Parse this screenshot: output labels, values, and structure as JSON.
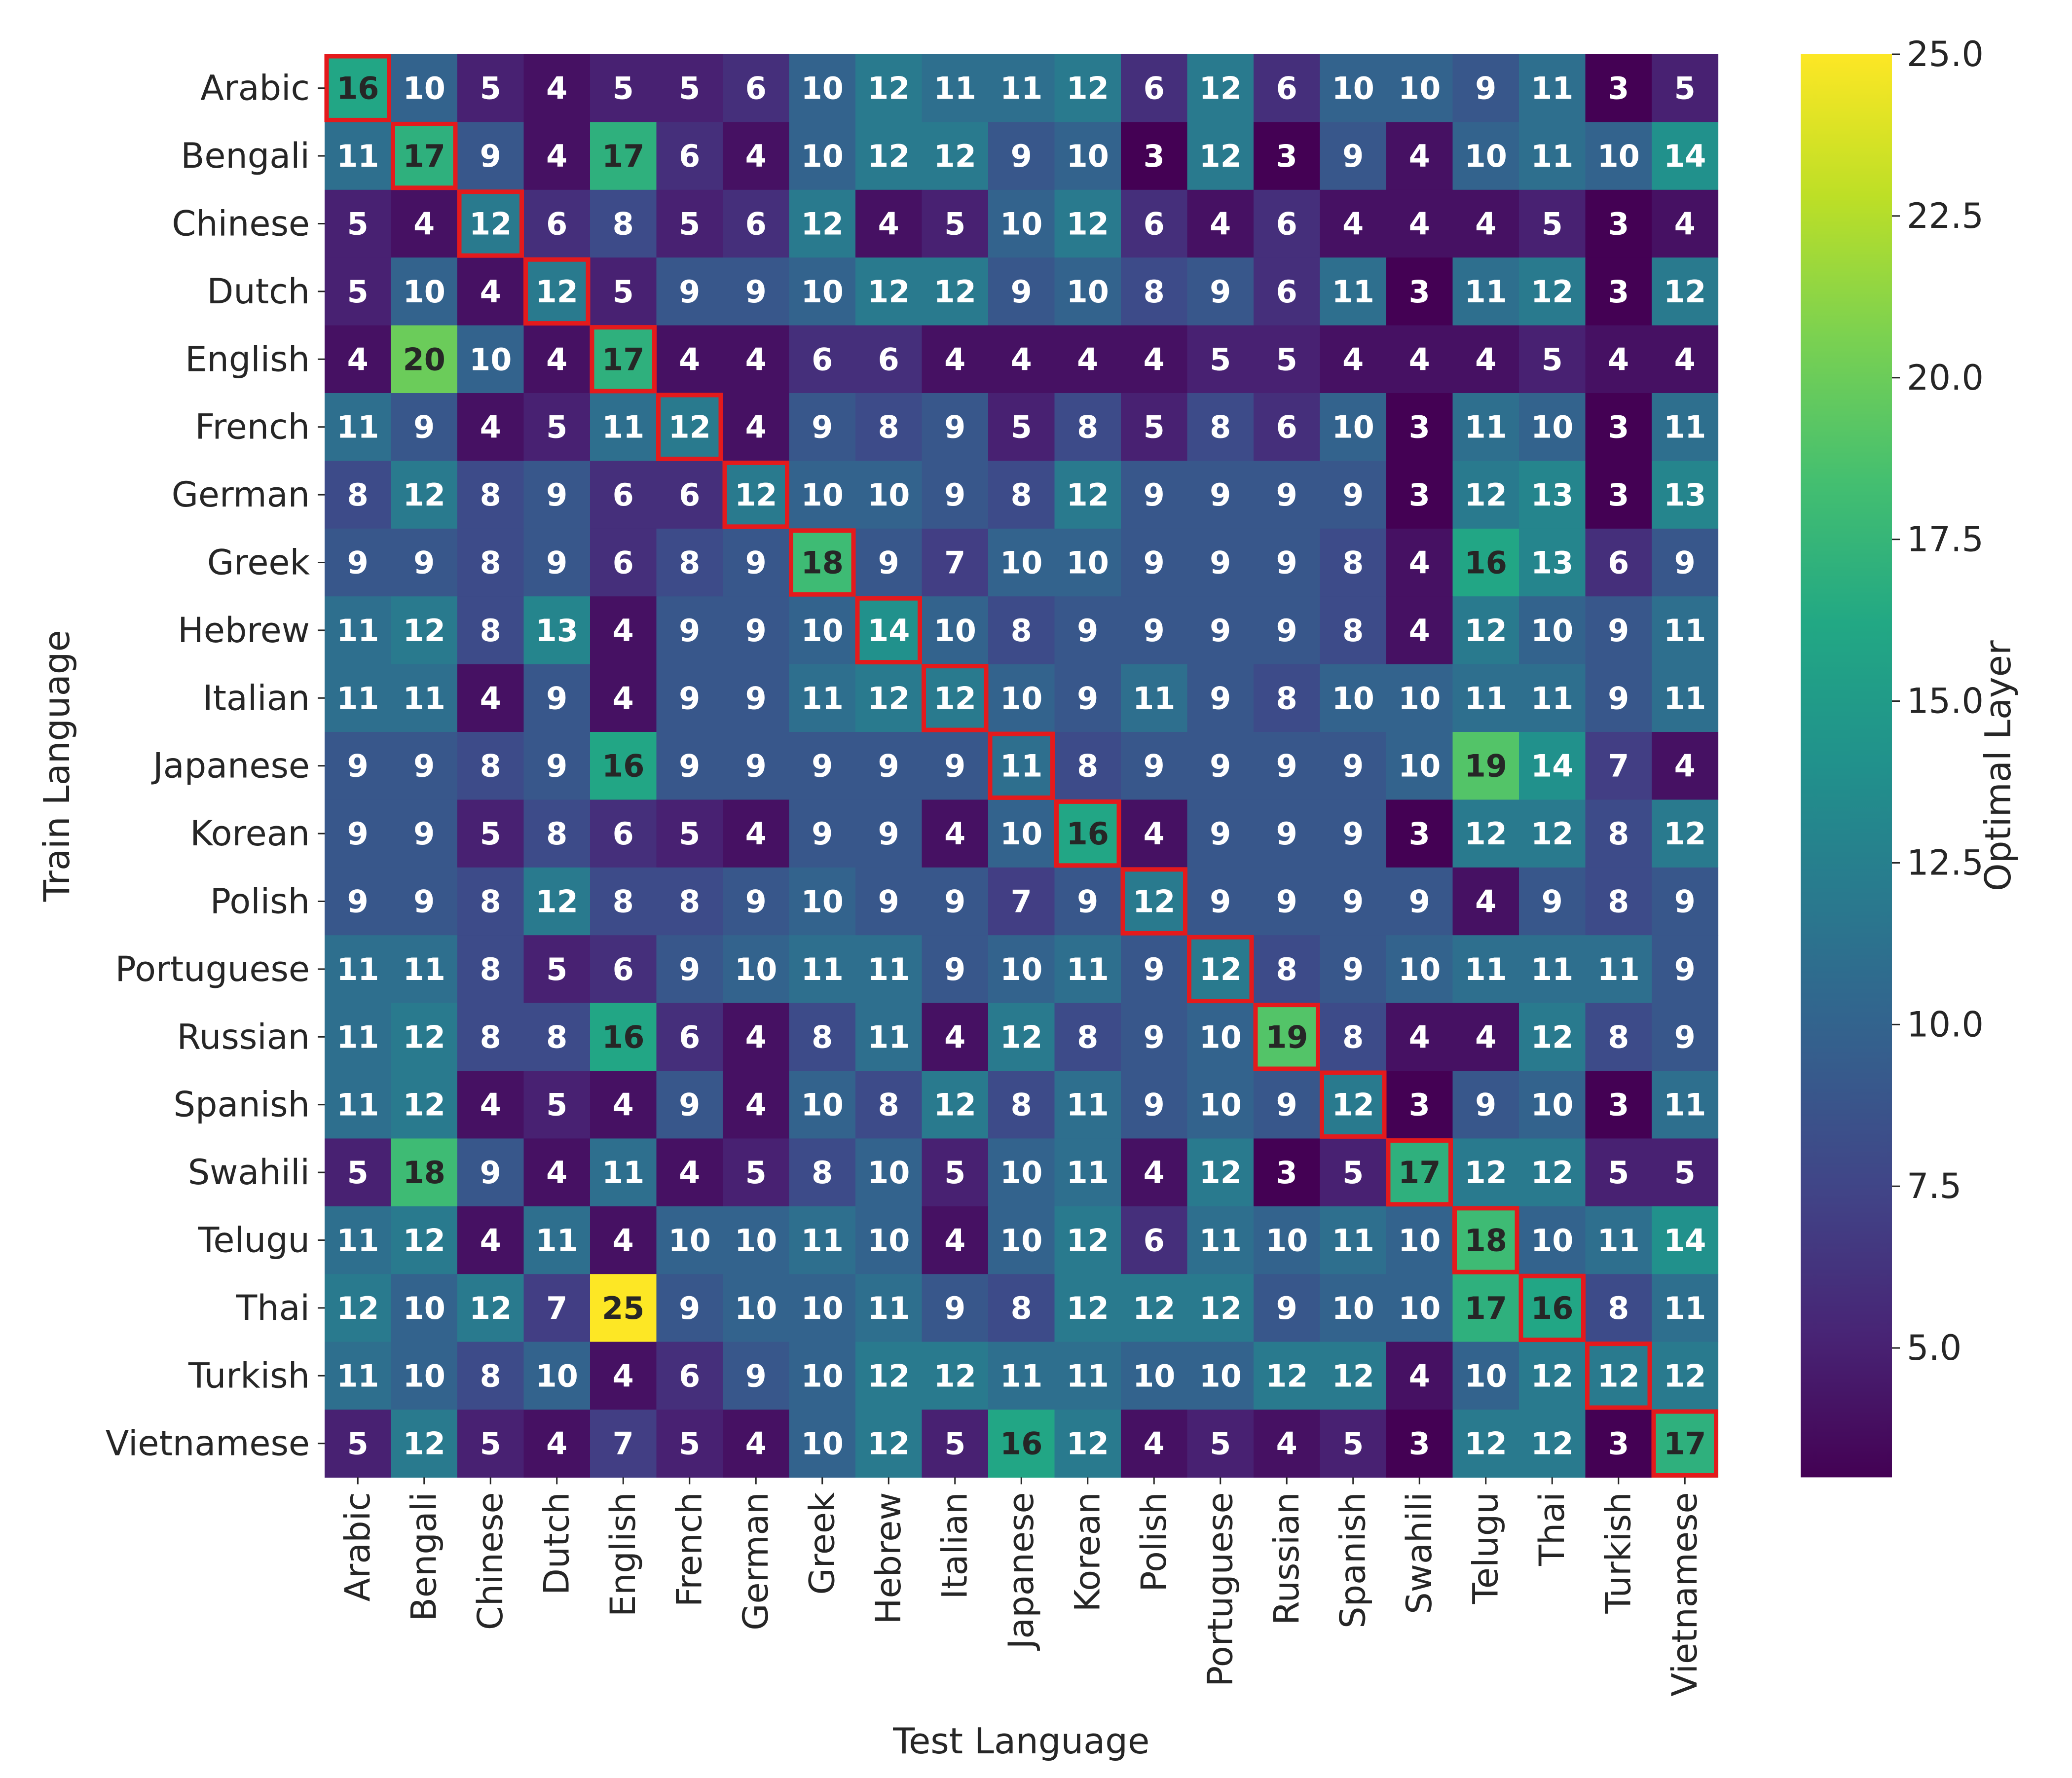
{
  "chart_data": {
    "type": "heatmap",
    "title": "",
    "xlabel": "Test Language",
    "ylabel": "Train Language",
    "colorbar_label": "Optimal Layer",
    "colormap": "viridis",
    "vmin": 3,
    "vmax": 25,
    "colorbar_ticks": [
      "5.0",
      "7.5",
      "10.0",
      "12.5",
      "15.0",
      "17.5",
      "20.0",
      "22.5",
      "25.0"
    ],
    "row_labels": [
      "Arabic",
      "Bengali",
      "Chinese",
      "Dutch",
      "English",
      "French",
      "German",
      "Greek",
      "Hebrew",
      "Italian",
      "Japanese",
      "Korean",
      "Polish",
      "Portuguese",
      "Russian",
      "Spanish",
      "Swahili",
      "Telugu",
      "Thai",
      "Turkish",
      "Vietnamese"
    ],
    "col_labels": [
      "Arabic",
      "Bengali",
      "Chinese",
      "Dutch",
      "English",
      "French",
      "German",
      "Greek",
      "Hebrew",
      "Italian",
      "Japanese",
      "Korean",
      "Polish",
      "Portuguese",
      "Russian",
      "Spanish",
      "Swahili",
      "Telugu",
      "Thai",
      "Turkish",
      "Vietnamese"
    ],
    "values": [
      [
        16,
        10,
        5,
        4,
        5,
        5,
        6,
        10,
        12,
        11,
        11,
        12,
        6,
        12,
        6,
        10,
        10,
        9,
        11,
        3,
        5
      ],
      [
        11,
        17,
        9,
        4,
        17,
        6,
        4,
        10,
        12,
        12,
        9,
        10,
        3,
        12,
        3,
        9,
        4,
        10,
        11,
        10,
        14
      ],
      [
        5,
        4,
        12,
        6,
        8,
        5,
        6,
        12,
        4,
        5,
        10,
        12,
        6,
        4,
        6,
        4,
        4,
        4,
        5,
        3,
        4
      ],
      [
        5,
        10,
        4,
        12,
        5,
        9,
        9,
        10,
        12,
        12,
        9,
        10,
        8,
        9,
        6,
        11,
        3,
        11,
        12,
        3,
        12
      ],
      [
        4,
        20,
        10,
        4,
        17,
        4,
        4,
        6,
        6,
        4,
        4,
        4,
        4,
        5,
        5,
        4,
        4,
        4,
        5,
        4,
        4
      ],
      [
        11,
        9,
        4,
        5,
        11,
        12,
        4,
        9,
        8,
        9,
        5,
        8,
        5,
        8,
        6,
        10,
        3,
        11,
        10,
        3,
        11
      ],
      [
        8,
        12,
        8,
        9,
        6,
        6,
        12,
        10,
        10,
        9,
        8,
        12,
        9,
        9,
        9,
        9,
        3,
        12,
        13,
        3,
        13
      ],
      [
        9,
        9,
        8,
        9,
        6,
        8,
        9,
        18,
        9,
        7,
        10,
        10,
        9,
        9,
        9,
        8,
        4,
        16,
        13,
        6,
        9
      ],
      [
        11,
        12,
        8,
        13,
        4,
        9,
        9,
        10,
        14,
        10,
        8,
        9,
        9,
        9,
        9,
        8,
        4,
        12,
        10,
        9,
        11
      ],
      [
        11,
        11,
        4,
        9,
        4,
        9,
        9,
        11,
        12,
        12,
        10,
        9,
        11,
        9,
        8,
        10,
        10,
        11,
        11,
        9,
        11
      ],
      [
        9,
        9,
        8,
        9,
        16,
        9,
        9,
        9,
        9,
        9,
        11,
        8,
        9,
        9,
        9,
        9,
        10,
        19,
        14,
        7,
        4
      ],
      [
        9,
        9,
        5,
        8,
        6,
        5,
        4,
        9,
        9,
        4,
        10,
        16,
        4,
        9,
        9,
        9,
        3,
        12,
        12,
        8,
        12
      ],
      [
        9,
        9,
        8,
        12,
        8,
        8,
        9,
        10,
        9,
        9,
        7,
        9,
        12,
        9,
        9,
        9,
        9,
        4,
        9,
        8,
        9
      ],
      [
        11,
        11,
        8,
        5,
        6,
        9,
        10,
        11,
        11,
        9,
        10,
        11,
        9,
        12,
        8,
        9,
        10,
        11,
        11,
        11,
        9
      ],
      [
        11,
        12,
        8,
        8,
        16,
        6,
        4,
        8,
        11,
        4,
        12,
        8,
        9,
        10,
        19,
        8,
        4,
        4,
        12,
        8,
        9
      ],
      [
        11,
        12,
        4,
        5,
        4,
        9,
        4,
        10,
        8,
        12,
        8,
        11,
        9,
        10,
        9,
        12,
        3,
        9,
        10,
        3,
        11
      ],
      [
        5,
        18,
        9,
        4,
        11,
        4,
        5,
        8,
        10,
        5,
        10,
        11,
        4,
        12,
        3,
        5,
        17,
        12,
        12,
        5,
        5
      ],
      [
        11,
        12,
        4,
        11,
        4,
        10,
        10,
        11,
        10,
        4,
        10,
        12,
        6,
        11,
        10,
        11,
        10,
        18,
        10,
        11,
        14
      ],
      [
        12,
        10,
        12,
        7,
        25,
        9,
        10,
        10,
        11,
        9,
        8,
        12,
        12,
        12,
        9,
        10,
        10,
        17,
        16,
        8,
        11
      ],
      [
        11,
        10,
        8,
        10,
        4,
        6,
        9,
        10,
        12,
        12,
        11,
        11,
        10,
        10,
        12,
        12,
        4,
        10,
        12,
        12,
        12
      ],
      [
        5,
        12,
        5,
        4,
        7,
        5,
        4,
        10,
        12,
        5,
        16,
        12,
        4,
        5,
        4,
        5,
        3,
        12,
        12,
        3,
        17
      ]
    ],
    "highlight": "diagonal",
    "highlight_color": "#e41a1c"
  }
}
